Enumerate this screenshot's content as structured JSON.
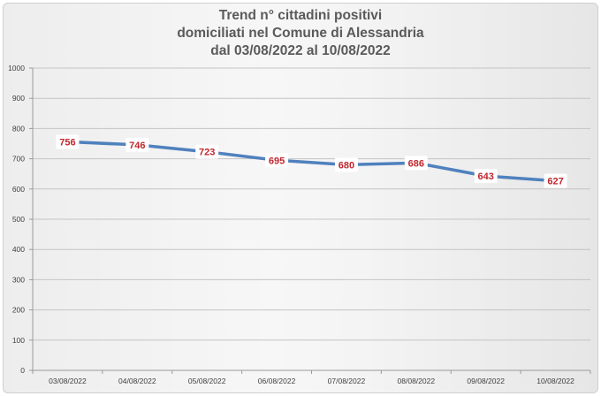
{
  "chart_data": {
    "type": "line",
    "title": [
      "Trend n° cittadini positivi",
      "domiciliati nel Comune di Alessandria",
      "dal 03/08/2022 al 10/08/2022"
    ],
    "categories": [
      "03/08/2022",
      "04/08/2022",
      "05/08/2022",
      "06/08/2022",
      "07/08/2022",
      "08/08/2022",
      "09/08/2022",
      "10/08/2022"
    ],
    "series": [
      {
        "values": [
          756,
          746,
          723,
          695,
          680,
          686,
          643,
          627
        ],
        "data_labels": [
          "756",
          "746",
          "723",
          "695",
          "680",
          "686",
          "643",
          "627"
        ],
        "color": "#4f81bd"
      }
    ],
    "ylim": [
      0,
      1000
    ],
    "yticks": [
      "0",
      "100",
      "200",
      "300",
      "400",
      "500",
      "600",
      "700",
      "800",
      "900",
      "1000"
    ],
    "grid": "horizontal",
    "legend": "none",
    "label_color": "#c0272d"
  }
}
